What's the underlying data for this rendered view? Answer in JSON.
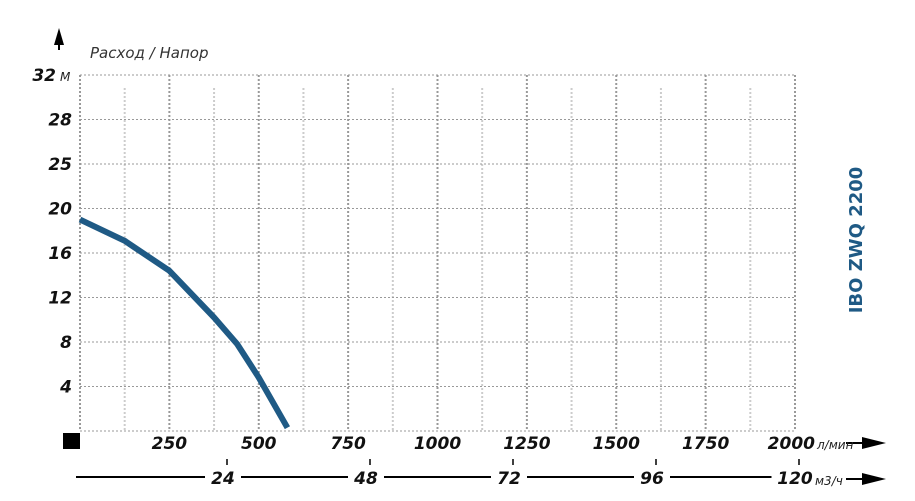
{
  "chart_data": {
    "type": "line",
    "title": "Расход / Напор",
    "model_label": "IBO ZWQ 2200",
    "y_unit": "М",
    "x_unit": "л/мин",
    "x2_unit": "м3/ч",
    "xlim": [
      0,
      2000
    ],
    "x_ticks": [
      250,
      500,
      750,
      1000,
      1250,
      1500,
      1750,
      2000
    ],
    "x2_ticks": [
      24,
      48,
      72,
      96,
      120
    ],
    "y_ticks": [
      4,
      8,
      12,
      16,
      20,
      25,
      28,
      32
    ],
    "grid": true,
    "curve_color": "#1f5a85",
    "series": [
      {
        "x": [
          0,
          125,
          250,
          375,
          440,
          500,
          580
        ],
        "y": [
          19.0,
          17.1,
          14.4,
          10.2,
          7.8,
          4.8,
          0.3
        ]
      }
    ]
  }
}
